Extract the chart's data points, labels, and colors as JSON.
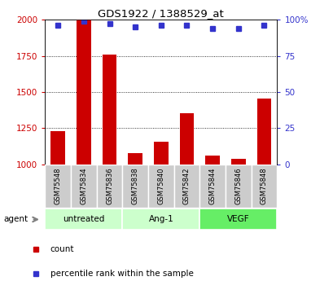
{
  "title": "GDS1922 / 1388529_at",
  "samples": [
    "GSM75548",
    "GSM75834",
    "GSM75836",
    "GSM75838",
    "GSM75840",
    "GSM75842",
    "GSM75844",
    "GSM75846",
    "GSM75848"
  ],
  "count_values": [
    1230,
    2000,
    1760,
    1080,
    1155,
    1355,
    1060,
    1040,
    1455
  ],
  "percentile_values": [
    96,
    99,
    97,
    95,
    96,
    96,
    94,
    94,
    96
  ],
  "group_labels": [
    "untreated",
    "Ang-1",
    "VEGF"
  ],
  "group_ranges": [
    [
      0,
      2
    ],
    [
      3,
      5
    ],
    [
      6,
      8
    ]
  ],
  "group_colors": [
    "#ccffcc",
    "#ccffcc",
    "#66ee66"
  ],
  "ylim_left": [
    1000,
    2000
  ],
  "ylim_right": [
    0,
    100
  ],
  "yticks_left": [
    1000,
    1250,
    1500,
    1750,
    2000
  ],
  "yticks_right": [
    0,
    25,
    50,
    75,
    100
  ],
  "bar_color": "#cc0000",
  "dot_color": "#3333cc",
  "grid_color": "#000000",
  "left_tick_color": "#cc0000",
  "right_tick_color": "#3333cc",
  "sample_box_color": "#cccccc",
  "bar_width": 0.55
}
